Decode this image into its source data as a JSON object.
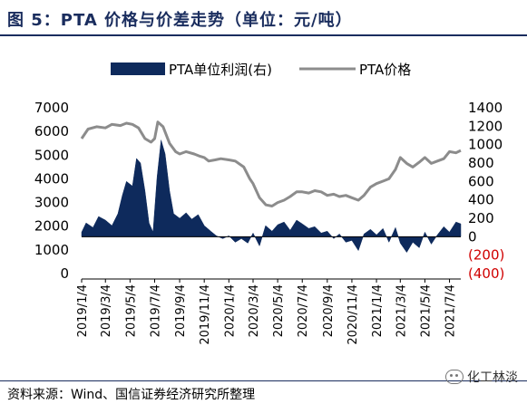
{
  "title": "图 5：PTA 价格与价差走势（单位：元/吨）",
  "source": "资料来源：Wind、国信证券经济研究所整理",
  "watermark": "化工林淡",
  "chart_data": {
    "type": "bar+line",
    "legend": [
      "PTA单位利润(右)",
      "PTA价格"
    ],
    "legend_position": "top",
    "colors": {
      "profit": "#0e2a5c",
      "price": "#8c8c8c",
      "negative_ticks": "#d00000"
    },
    "left_axis": {
      "ylim": [
        0,
        7000
      ],
      "ticks": [
        0,
        1000,
        2000,
        3000,
        4000,
        5000,
        6000,
        7000
      ],
      "tick_labels": [
        "0",
        "1000",
        "2000",
        "3000",
        "4000",
        "5000",
        "6000",
        "7000"
      ]
    },
    "right_axis": {
      "ylim": [
        -400,
        1400
      ],
      "ticks": [
        1400,
        1200,
        1000,
        800,
        600,
        400,
        200,
        0,
        -200,
        -400
      ],
      "tick_labels": [
        "1400",
        "1200",
        "1000",
        "800",
        "600",
        "400",
        "200",
        "0",
        "(200)",
        "(400)"
      ]
    },
    "x_tick_labels": [
      "2019/1/4",
      "2019/3/4",
      "2019/5/4",
      "2019/7/4",
      "2019/9/4",
      "2019/11/4",
      "2020/1/4",
      "2020/3/4",
      "2020/5/4",
      "2020/7/4",
      "2020/9/4",
      "2020/11/4",
      "2021/1/4",
      "2021/3/4",
      "2021/5/4",
      "2021/7/4"
    ],
    "x_range": [
      "2019/1/4",
      "2021/8/1"
    ],
    "series": [
      {
        "name": "PTA价格",
        "type": "line",
        "axis": "left",
        "points": [
          [
            "2019/1/4",
            5700
          ],
          [
            "2019/1/20",
            6100
          ],
          [
            "2019/2/10",
            6200
          ],
          [
            "2019/3/4",
            6150
          ],
          [
            "2019/3/20",
            6300
          ],
          [
            "2019/4/10",
            6250
          ],
          [
            "2019/4/25",
            6350
          ],
          [
            "2019/5/10",
            6300
          ],
          [
            "2019/5/25",
            6150
          ],
          [
            "2019/6/10",
            5700
          ],
          [
            "2019/6/25",
            5550
          ],
          [
            "2019/7/4",
            5700
          ],
          [
            "2019/7/12",
            6400
          ],
          [
            "2019/7/25",
            6200
          ],
          [
            "2019/8/10",
            5500
          ],
          [
            "2019/8/25",
            5150
          ],
          [
            "2019/9/4",
            5050
          ],
          [
            "2019/9/20",
            5150
          ],
          [
            "2019/10/10",
            5050
          ],
          [
            "2019/10/25",
            4950
          ],
          [
            "2019/11/4",
            4900
          ],
          [
            "2019/11/15",
            4750
          ],
          [
            "2019/12/1",
            4800
          ],
          [
            "2019/12/15",
            4850
          ],
          [
            "2020/1/4",
            4800
          ],
          [
            "2020/1/20",
            4750
          ],
          [
            "2020/2/10",
            4500
          ],
          [
            "2020/2/25",
            4000
          ],
          [
            "2020/3/4",
            3800
          ],
          [
            "2020/3/20",
            3200
          ],
          [
            "2020/4/5",
            2900
          ],
          [
            "2020/4/20",
            2850
          ],
          [
            "2020/5/4",
            3000
          ],
          [
            "2020/5/20",
            3100
          ],
          [
            "2020/6/4",
            3250
          ],
          [
            "2020/6/20",
            3450
          ],
          [
            "2020/7/4",
            3450
          ],
          [
            "2020/7/20",
            3400
          ],
          [
            "2020/8/4",
            3500
          ],
          [
            "2020/8/20",
            3450
          ],
          [
            "2020/9/4",
            3300
          ],
          [
            "2020/9/20",
            3350
          ],
          [
            "2020/10/4",
            3250
          ],
          [
            "2020/10/20",
            3300
          ],
          [
            "2020/11/4",
            3200
          ],
          [
            "2020/11/20",
            3100
          ],
          [
            "2020/12/4",
            3300
          ],
          [
            "2020/12/20",
            3650
          ],
          [
            "2021/1/4",
            3800
          ],
          [
            "2021/1/20",
            3900
          ],
          [
            "2021/2/4",
            4000
          ],
          [
            "2021/2/20",
            4400
          ],
          [
            "2021/3/4",
            4900
          ],
          [
            "2021/3/20",
            4650
          ],
          [
            "2021/4/4",
            4500
          ],
          [
            "2021/4/20",
            4700
          ],
          [
            "2021/5/4",
            4900
          ],
          [
            "2021/5/20",
            4650
          ],
          [
            "2021/6/4",
            4750
          ],
          [
            "2021/6/20",
            4850
          ],
          [
            "2021/7/4",
            5150
          ],
          [
            "2021/7/20",
            5100
          ],
          [
            "2021/8/1",
            5200
          ]
        ]
      },
      {
        "name": "PTA单位利润(右)",
        "type": "area",
        "axis": "right",
        "points": [
          [
            "2019/1/4",
            50
          ],
          [
            "2019/1/15",
            150
          ],
          [
            "2019/2/1",
            100
          ],
          [
            "2019/2/15",
            220
          ],
          [
            "2019/3/4",
            180
          ],
          [
            "2019/3/20",
            120
          ],
          [
            "2019/4/4",
            250
          ],
          [
            "2019/4/15",
            450
          ],
          [
            "2019/4/25",
            600
          ],
          [
            "2019/5/10",
            550
          ],
          [
            "2019/5/20",
            850
          ],
          [
            "2019/5/30",
            800
          ],
          [
            "2019/6/10",
            500
          ],
          [
            "2019/6/20",
            150
          ],
          [
            "2019/6/30",
            50
          ],
          [
            "2019/7/10",
            650
          ],
          [
            "2019/7/20",
            1050
          ],
          [
            "2019/7/30",
            900
          ],
          [
            "2019/8/10",
            500
          ],
          [
            "2019/8/20",
            250
          ],
          [
            "2019/9/4",
            200
          ],
          [
            "2019/9/20",
            260
          ],
          [
            "2019/10/4",
            190
          ],
          [
            "2019/10/20",
            240
          ],
          [
            "2019/11/4",
            120
          ],
          [
            "2019/11/20",
            60
          ],
          [
            "2019/12/4",
            10
          ],
          [
            "2019/12/20",
            -20
          ],
          [
            "2020/1/4",
            10
          ],
          [
            "2020/1/20",
            -60
          ],
          [
            "2020/2/4",
            -20
          ],
          [
            "2020/2/20",
            -70
          ],
          [
            "2020/3/4",
            40
          ],
          [
            "2020/3/20",
            -100
          ],
          [
            "2020/4/4",
            120
          ],
          [
            "2020/4/20",
            60
          ],
          [
            "2020/5/4",
            130
          ],
          [
            "2020/5/20",
            160
          ],
          [
            "2020/6/4",
            70
          ],
          [
            "2020/6/20",
            180
          ],
          [
            "2020/7/4",
            140
          ],
          [
            "2020/7/20",
            90
          ],
          [
            "2020/8/4",
            110
          ],
          [
            "2020/8/20",
            40
          ],
          [
            "2020/9/4",
            60
          ],
          [
            "2020/9/20",
            -20
          ],
          [
            "2020/10/4",
            30
          ],
          [
            "2020/10/20",
            -60
          ],
          [
            "2020/11/4",
            -40
          ],
          [
            "2020/11/20",
            -150
          ],
          [
            "2020/12/4",
            30
          ],
          [
            "2020/12/20",
            80
          ],
          [
            "2021/1/4",
            20
          ],
          [
            "2021/1/20",
            90
          ],
          [
            "2021/2/4",
            -60
          ],
          [
            "2021/2/20",
            100
          ],
          [
            "2021/3/4",
            -70
          ],
          [
            "2021/3/20",
            -170
          ],
          [
            "2021/4/4",
            -60
          ],
          [
            "2021/4/20",
            -120
          ],
          [
            "2021/5/4",
            50
          ],
          [
            "2021/5/20",
            -80
          ],
          [
            "2021/6/4",
            20
          ],
          [
            "2021/6/20",
            110
          ],
          [
            "2021/7/4",
            50
          ],
          [
            "2021/7/20",
            160
          ],
          [
            "2021/8/1",
            140
          ]
        ]
      }
    ]
  }
}
